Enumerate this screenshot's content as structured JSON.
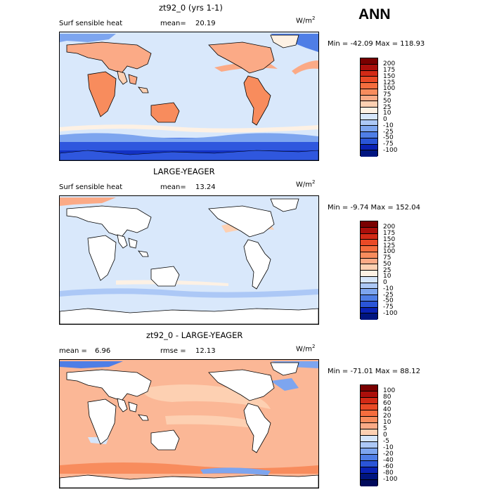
{
  "header": {
    "season": "ANN"
  },
  "panels": [
    {
      "title": "zt92_0 (yrs 1-1)",
      "left_label": "Surf sensible heat",
      "stat_label": "mean=",
      "stat_value": "20.19",
      "units": "W/m",
      "units_exp": "2",
      "minmax": "Min = -42.09 Max = 118.93",
      "levels": [
        "200",
        "175",
        "150",
        "125",
        "100",
        "75",
        "50",
        "25",
        "10",
        "0",
        "-10",
        "-25",
        "-50",
        "-75",
        "-100"
      ]
    },
    {
      "title": "LARGE-YEAGER",
      "left_label": "Surf sensible heat",
      "stat_label": "mean=",
      "stat_value": "13.24",
      "units": "W/m",
      "units_exp": "2",
      "minmax": "Min = -9.74 Max = 152.04",
      "levels": [
        "200",
        "175",
        "150",
        "125",
        "100",
        "75",
        "50",
        "25",
        "10",
        "0",
        "-10",
        "-25",
        "-50",
        "-75",
        "-100"
      ]
    },
    {
      "title": "zt92_0 - LARGE-YEAGER",
      "left_label": "mean =",
      "left_value": "6.96",
      "stat_label": "rmse =",
      "stat_value": "12.13",
      "units": "W/m",
      "units_exp": "2",
      "minmax": "Min = -71.01 Max = 88.12",
      "levels": [
        "100",
        "80",
        "60",
        "40",
        "20",
        "10",
        "5",
        "0",
        "-5",
        "-10",
        "-20",
        "-40",
        "-60",
        "-80",
        "-100"
      ]
    }
  ],
  "colors": {
    "bar": [
      "#7a0000",
      "#ab0f0b",
      "#d32a16",
      "#ea4a26",
      "#f56d3e",
      "#f88c5d",
      "#fbaa86",
      "#fdd0b2",
      "#fdf1e4",
      "#d6e6fb",
      "#acc8f6",
      "#7da5ef",
      "#4f7ee6",
      "#2a55d7",
      "#0a22b4",
      "#001580"
    ],
    "ocean": "#d9e8fb",
    "land_light": "#fde0cc",
    "land_mid": "#f8a87e",
    "land_strong": "#f27c52",
    "cold": "#2f57de",
    "cold_deep": "#1332c4"
  }
}
